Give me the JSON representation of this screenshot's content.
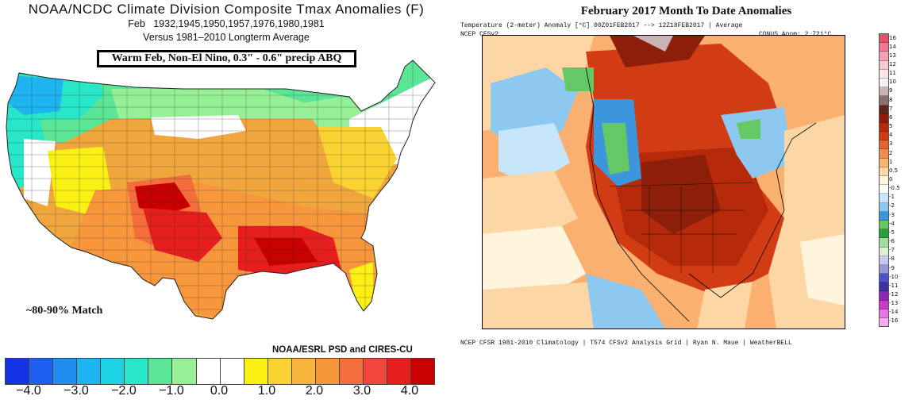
{
  "left_panel": {
    "title": "NOAA/NCDC Climate Division Composite Tmax Anomalies (F)",
    "subtitle_month": "Feb",
    "subtitle_years": "1932,1945,1950,1957,1976,1980,1981",
    "subtitle_base": "Versus 1981–2010 Longterm Average",
    "annotation_box": "Warm Feb, Non-El Nino, 0.3\" - 0.6\" precip ABQ",
    "match_note": "~80-90% Match",
    "credit": "NOAA/ESRL PSD and CIRES-CU",
    "colorbar": {
      "colors": [
        "#1432e6",
        "#1e5ff0",
        "#1f8cf0",
        "#1eb4f0",
        "#1ed2e6",
        "#28e6c8",
        "#5ae696",
        "#96f096",
        "#ffffff",
        "#ffffff",
        "#faf014",
        "#fad232",
        "#f8b43c",
        "#f8963c",
        "#f46e3c",
        "#f0463c",
        "#e61e1e",
        "#c80000"
      ],
      "labels": [
        "−4.0",
        "−3.0",
        "−2.0",
        "−1.0",
        "0.0",
        "1.0",
        "2.0",
        "3.0",
        "4.0"
      ]
    }
  },
  "right_panel": {
    "title": "February 2017 Month To Date Anomalies",
    "subtitle_line1": "Temperature (2-meter) Anomaly   [°C] 00Z01FEB2017  --> 12Z18FEB2017 | Average",
    "subtitle_model": "NCEP  CFSv2",
    "conus_anom": "CONUS Anom: 2.721°C",
    "footer": "NCEP CFSR 1981-2010 Climatology | T574 CFSv2 Analysis Grid | Ryan N. Maue | WeatherBELL",
    "scale": {
      "labels": [
        "16",
        "14",
        "13",
        "12",
        "11",
        "10",
        "9",
        "8",
        "7",
        "6",
        "5",
        "4",
        "3",
        "2",
        "1",
        "0.5",
        "0",
        "-0.5",
        "-1",
        "-2",
        "-3",
        "-4",
        "-5",
        "-6",
        "-7",
        "-8",
        "-9",
        "-10",
        "-11",
        "-12",
        "-13",
        "-14",
        "-16"
      ],
      "colors": [
        "#e6506e",
        "#f07896",
        "#f4a0b4",
        "#f8c8d2",
        "#fae6ea",
        "#f5f0f0",
        "#c8b4b4",
        "#8c6e6e",
        "#5a2814",
        "#8c1e0a",
        "#b42a0a",
        "#d23c14",
        "#e6642d",
        "#f08c50",
        "#f8b46e",
        "#fcd7a5",
        "#fff5dc",
        "#ffffff",
        "#c8e6fa",
        "#8cc8f0",
        "#3c96dc",
        "#64c864",
        "#28a03c",
        "#a0dca0",
        "#dcf0d2",
        "#c8c8f0",
        "#9696dc",
        "#5050c8",
        "#3c32a0",
        "#8c28b4",
        "#c83cc8",
        "#e678e6",
        "#f5aaf0"
      ]
    }
  }
}
